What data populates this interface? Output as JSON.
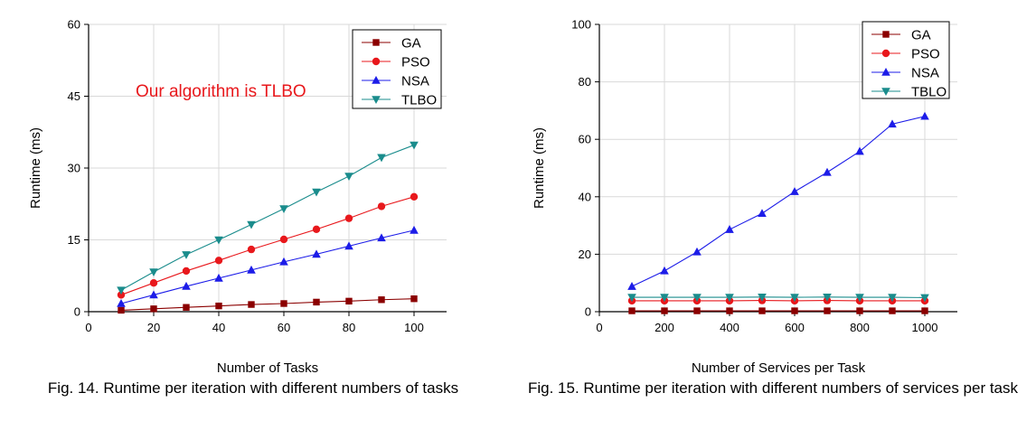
{
  "colors": {
    "GA": "#8b0000",
    "PSO": "#e8181c",
    "NSA": "#1c1ce8",
    "TLBO": "#1a8c8c",
    "annotation": "#e8181c",
    "grid": "#d9d9d9"
  },
  "captions": {
    "fig14": "Fig. 14. Runtime per iteration with different numbers of tasks",
    "fig15": "Fig. 15. Runtime per iteration with different numbers of services per task"
  },
  "chart_data": [
    {
      "type": "line",
      "id": "fig14",
      "title": "",
      "xlabel": "Number of Tasks",
      "ylabel": "Runtime (ms)",
      "xlim": [
        0,
        110
      ],
      "ylim": [
        0,
        60
      ],
      "xticks": [
        0,
        20,
        40,
        60,
        80,
        100
      ],
      "yticks": [
        0,
        15,
        30,
        45,
        60
      ],
      "grid": true,
      "legend": "top-right",
      "annotation": "Our algorithm is TLBO",
      "x": [
        10,
        20,
        30,
        40,
        50,
        60,
        70,
        80,
        90,
        100
      ],
      "series": [
        {
          "name": "GA",
          "marker": "square",
          "values": [
            0.3,
            0.6,
            0.9,
            1.2,
            1.5,
            1.7,
            2.0,
            2.2,
            2.5,
            2.7
          ]
        },
        {
          "name": "PSO",
          "marker": "circle",
          "values": [
            3.5,
            6.0,
            8.5,
            10.7,
            13.0,
            15.1,
            17.2,
            19.5,
            22.0,
            24.0
          ]
        },
        {
          "name": "NSA",
          "marker": "triangle-up",
          "values": [
            1.7,
            3.5,
            5.3,
            7.0,
            8.7,
            10.4,
            12.0,
            13.7,
            15.4,
            17.0
          ]
        },
        {
          "name": "TLBO",
          "marker": "triangle-down",
          "values": [
            4.5,
            8.3,
            11.9,
            15.0,
            18.2,
            21.5,
            25.0,
            28.3,
            32.2,
            34.8
          ]
        }
      ]
    },
    {
      "type": "line",
      "id": "fig15",
      "title": "",
      "xlabel": "Number of Services per Task",
      "ylabel": "Runtime (ms)",
      "xlim": [
        0,
        1100
      ],
      "ylim": [
        0,
        100
      ],
      "xticks": [
        0,
        200,
        400,
        600,
        800,
        1000
      ],
      "yticks": [
        0,
        20,
        40,
        60,
        80,
        100
      ],
      "grid": true,
      "legend": "top-right",
      "x": [
        100,
        200,
        300,
        400,
        500,
        600,
        700,
        800,
        900,
        1000
      ],
      "series": [
        {
          "name": "GA",
          "marker": "square",
          "values": [
            0.3,
            0.3,
            0.3,
            0.3,
            0.3,
            0.3,
            0.3,
            0.3,
            0.3,
            0.3
          ]
        },
        {
          "name": "PSO",
          "marker": "circle",
          "values": [
            3.8,
            3.8,
            3.8,
            3.8,
            3.9,
            3.8,
            3.9,
            3.8,
            3.8,
            3.8
          ]
        },
        {
          "name": "NSA",
          "marker": "triangle-up",
          "values": [
            8.8,
            14.2,
            20.8,
            28.6,
            34.2,
            41.8,
            48.5,
            55.8,
            65.3,
            68.0
          ]
        },
        {
          "name": "TBLO",
          "marker": "triangle-down",
          "values": [
            5.0,
            5.0,
            5.0,
            5.0,
            5.1,
            5.0,
            5.1,
            5.0,
            5.0,
            4.9
          ]
        }
      ]
    }
  ]
}
